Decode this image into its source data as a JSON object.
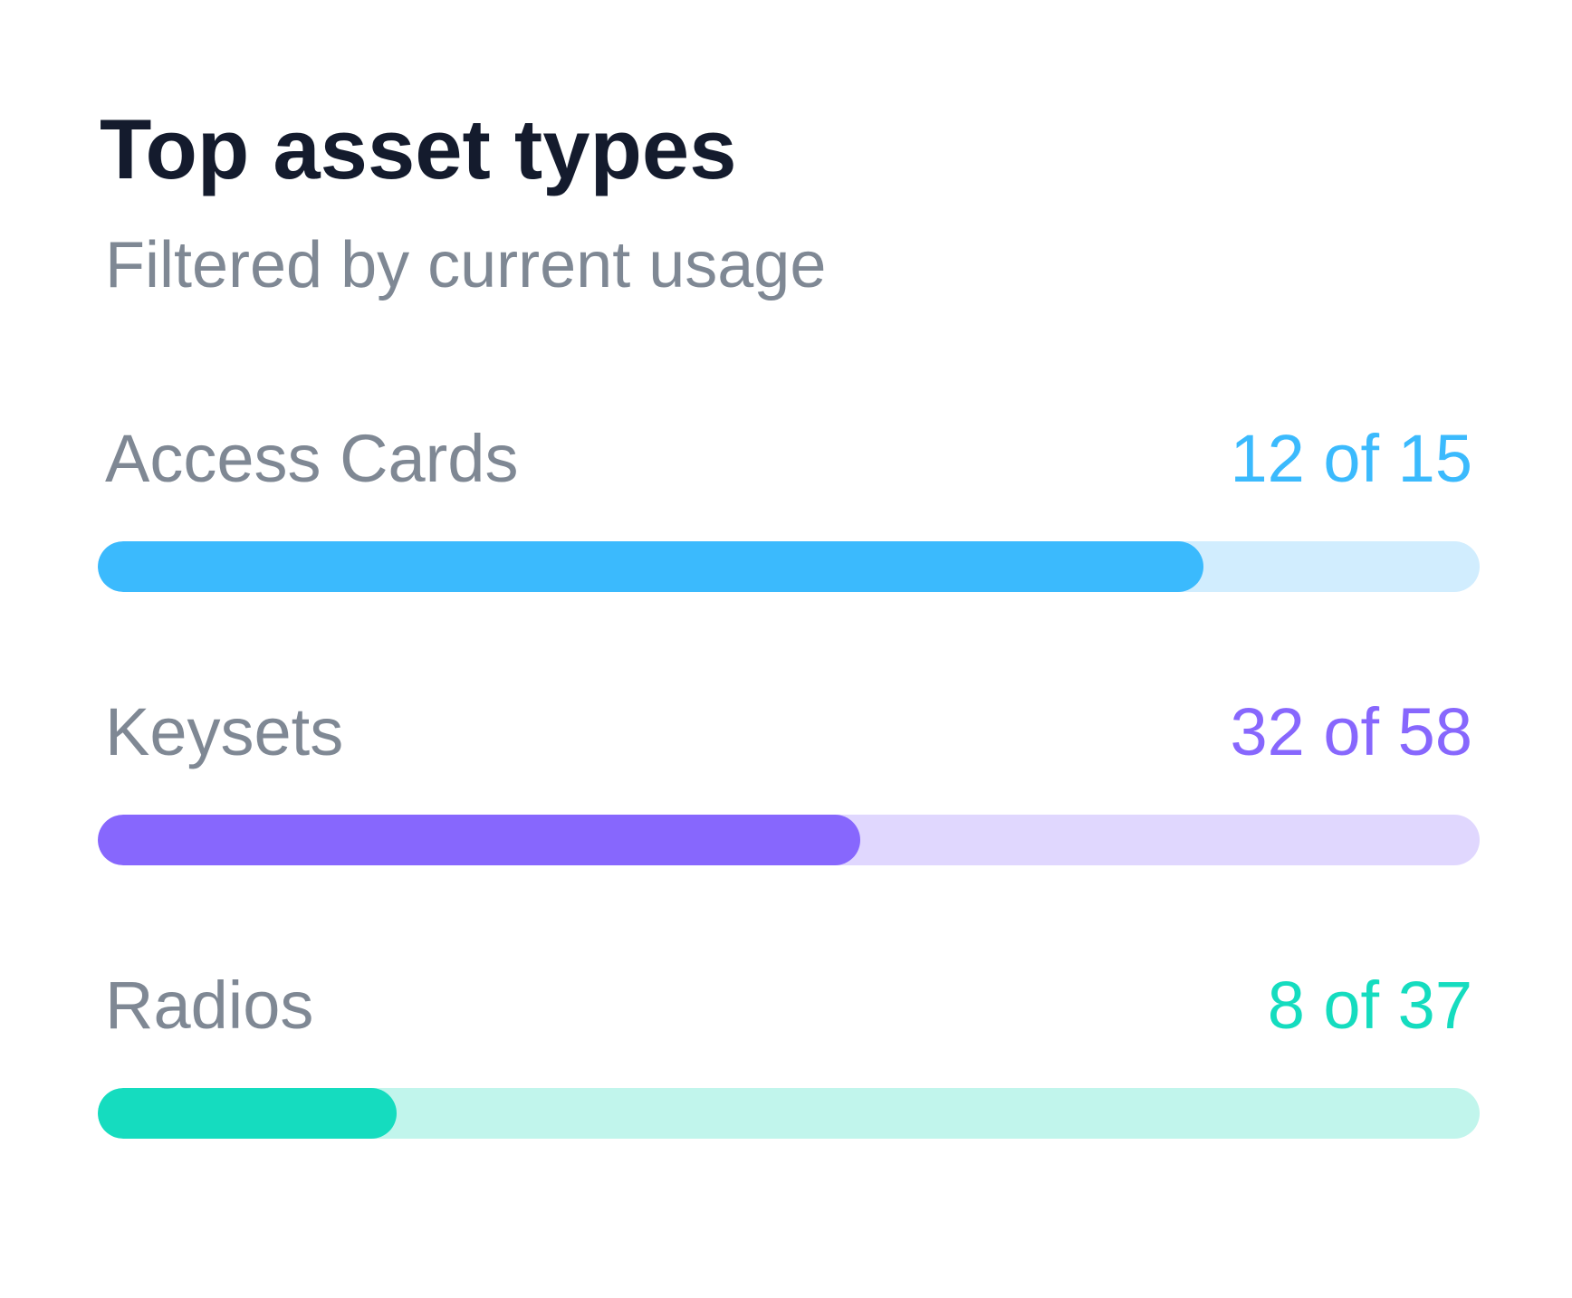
{
  "card": {
    "title": "Top asset types",
    "subtitle": "Filtered by current usage"
  },
  "items": [
    {
      "label": "Access Cards",
      "count_text": "12 of 15",
      "used": 12,
      "total": 15,
      "accent_color": "#3bbafd",
      "track_color": "#d1edfe"
    },
    {
      "label": "Keysets",
      "count_text": "32 of 58",
      "used": 32,
      "total": 58,
      "accent_color": "#8767fd",
      "track_color": "#e0d7fe"
    },
    {
      "label": "Radios",
      "count_text": "8 of 37",
      "used": 8,
      "total": 37,
      "accent_color": "#15dcbf",
      "track_color": "#c1f5ec"
    }
  ]
}
